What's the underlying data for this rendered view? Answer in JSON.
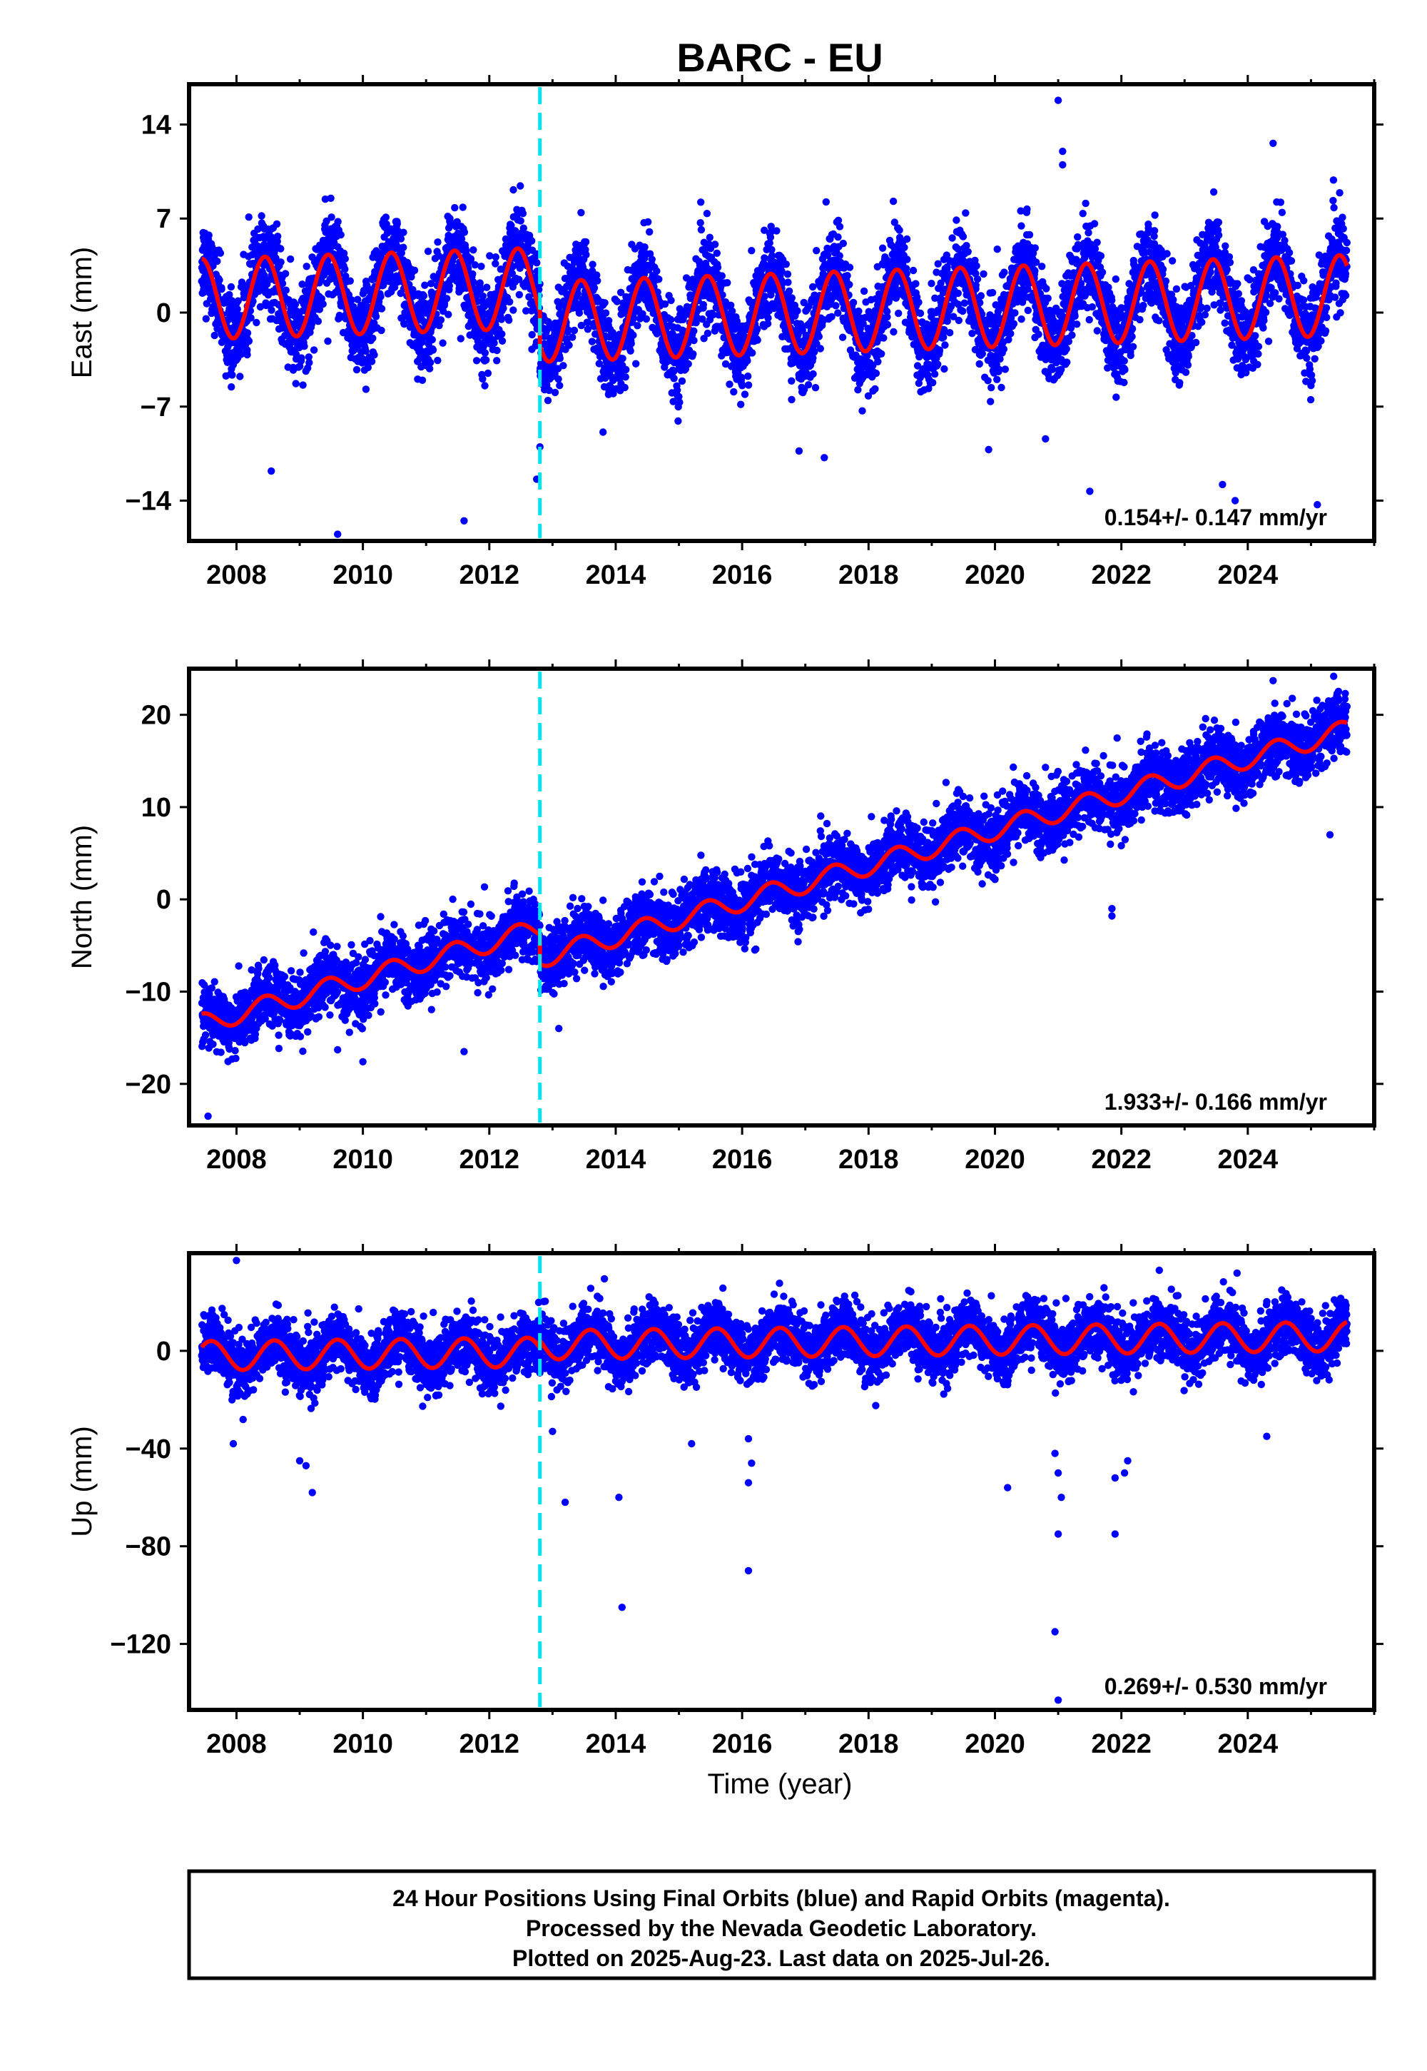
{
  "title": "BARC - EU",
  "colors": {
    "final_orbits": "#0000ff",
    "rapid_orbits": "#ff00ff",
    "model": "#ff0000",
    "event_line": "#00e5ee",
    "frame": "#000000"
  },
  "chart_data": [
    {
      "type": "scatter",
      "ylabel": "East (mm)",
      "xlabel": "",
      "xlim": [
        2007.25,
        2026.0
      ],
      "ylim": [
        -17,
        17
      ],
      "xticks": [
        2008,
        2010,
        2012,
        2014,
        2016,
        2018,
        2020,
        2022,
        2024
      ],
      "yticks": [
        -14,
        -7,
        0,
        7,
        14
      ],
      "rate": "0.154+/- 0.147 mm/yr",
      "event_line_x": 2012.8,
      "series": [
        {
          "type": "line",
          "name": "model",
          "model": {
            "start": 2007.45,
            "end": 2025.57,
            "base0": 1.0,
            "slope": 0.154,
            "annual_amp": 3.0,
            "annual_peak": 0.45,
            "offsets": [
              {
                "t": 2012.8,
                "dy": -2.5
              }
            ]
          }
        },
        {
          "type": "scatter",
          "name": "24 Hour Positions",
          "generated_from_model": true,
          "noise_sd": 1.6,
          "outliers": [
            [
              2021.0,
              15.8
            ],
            [
              2021.07,
              12.0
            ],
            [
              2021.07,
              11.0
            ],
            [
              2024.4,
              12.6
            ],
            [
              2009.6,
              -16.5
            ],
            [
              2011.6,
              -15.5
            ],
            [
              2012.75,
              -12.4
            ],
            [
              2012.8,
              -10.0
            ],
            [
              2021.5,
              -13.3
            ],
            [
              2025.1,
              -14.3
            ],
            [
              2023.6,
              -12.8
            ],
            [
              2023.8,
              -14.0
            ],
            [
              2008.55,
              -11.8
            ],
            [
              2017.3,
              -10.8
            ],
            [
              2016.9,
              -10.3
            ],
            [
              2019.9,
              -10.2
            ],
            [
              2020.8,
              -9.4
            ],
            [
              2013.8,
              -8.9
            ]
          ]
        }
      ]
    },
    {
      "type": "scatter",
      "ylabel": "North (mm)",
      "xlabel": "",
      "xlim": [
        2007.25,
        2026.0
      ],
      "ylim": [
        -24.5,
        25
      ],
      "xticks": [
        2008,
        2010,
        2012,
        2014,
        2016,
        2018,
        2020,
        2022,
        2024
      ],
      "yticks": [
        -20,
        -10,
        0,
        10,
        20
      ],
      "rate": "1.933+/- 0.166 mm/yr",
      "event_line_x": 2012.8,
      "series": [
        {
          "type": "line",
          "name": "model",
          "model": {
            "start": 2007.45,
            "end": 2025.57,
            "base0": -13.5,
            "slope": 1.933,
            "annual_amp": 1.1,
            "annual_peak": 0.45,
            "offsets": [
              {
                "t": 2012.8,
                "dy": -3.2
              }
            ]
          }
        },
        {
          "type": "scatter",
          "name": "24 Hour Positions",
          "generated_from_model": true,
          "noise_sd": 1.7,
          "outliers": [
            [
              2024.4,
              23.7
            ],
            [
              2020.8,
              14.3
            ],
            [
              2007.55,
              -23.5
            ],
            [
              2011.6,
              -16.5
            ],
            [
              2010.0,
              -17.6
            ],
            [
              2009.6,
              -16.3
            ],
            [
              2021.85,
              -1.8
            ],
            [
              2021.85,
              -1.0
            ],
            [
              2016.2,
              -5.5
            ],
            [
              2013.1,
              -14.0
            ],
            [
              2025.3,
              7.0
            ]
          ]
        }
      ]
    },
    {
      "type": "scatter",
      "ylabel": "Up (mm)",
      "xlabel": "Time (year)",
      "xlim": [
        2007.25,
        2026.0
      ],
      "ylim": [
        -147,
        40
      ],
      "xticks": [
        2008,
        2010,
        2012,
        2014,
        2016,
        2018,
        2020,
        2022,
        2024
      ],
      "yticks": [
        -120,
        -80,
        -40,
        0
      ],
      "rate": "0.269+/- 0.530 mm/yr",
      "event_line_x": 2012.8,
      "series": [
        {
          "type": "line",
          "name": "model",
          "model": {
            "start": 2007.45,
            "end": 2025.57,
            "base0": -2.0,
            "slope": 0.269,
            "annual_amp": 6.0,
            "annual_peak": 0.6,
            "offsets": [
              {
                "t": 2012.8,
                "dy": 3.0
              }
            ]
          }
        },
        {
          "type": "scatter",
          "name": "24 Hour Positions",
          "generated_from_model": true,
          "noise_sd": 6.0,
          "outliers": [
            [
              2008.0,
              37
            ],
            [
              2009.0,
              -45
            ],
            [
              2009.1,
              -47
            ],
            [
              2009.2,
              -58
            ],
            [
              2007.95,
              -38
            ],
            [
              2013.2,
              -62
            ],
            [
              2014.1,
              -105
            ],
            [
              2014.05,
              -60
            ],
            [
              2016.1,
              -36
            ],
            [
              2016.15,
              -46
            ],
            [
              2016.1,
              -54
            ],
            [
              2016.1,
              -90
            ],
            [
              2020.2,
              -56
            ],
            [
              2020.95,
              -115
            ],
            [
              2021.0,
              -75
            ],
            [
              2021.0,
              -143
            ],
            [
              2020.95,
              -42
            ],
            [
              2021.0,
              -50
            ],
            [
              2021.05,
              -60
            ],
            [
              2021.9,
              -75
            ],
            [
              2021.9,
              -52
            ],
            [
              2022.1,
              -45
            ],
            [
              2022.05,
              -50
            ],
            [
              2024.3,
              -35
            ],
            [
              2022.6,
              33
            ],
            [
              2013.0,
              -33
            ],
            [
              2015.2,
              -38
            ]
          ]
        }
      ]
    }
  ],
  "footer": {
    "line1": "24 Hour Positions Using Final Orbits (blue) and Rapid Orbits (magenta).",
    "line2": "Processed by the Nevada Geodetic Laboratory.",
    "line3": "Plotted on 2025-Aug-23. Last data on 2025-Jul-26."
  }
}
